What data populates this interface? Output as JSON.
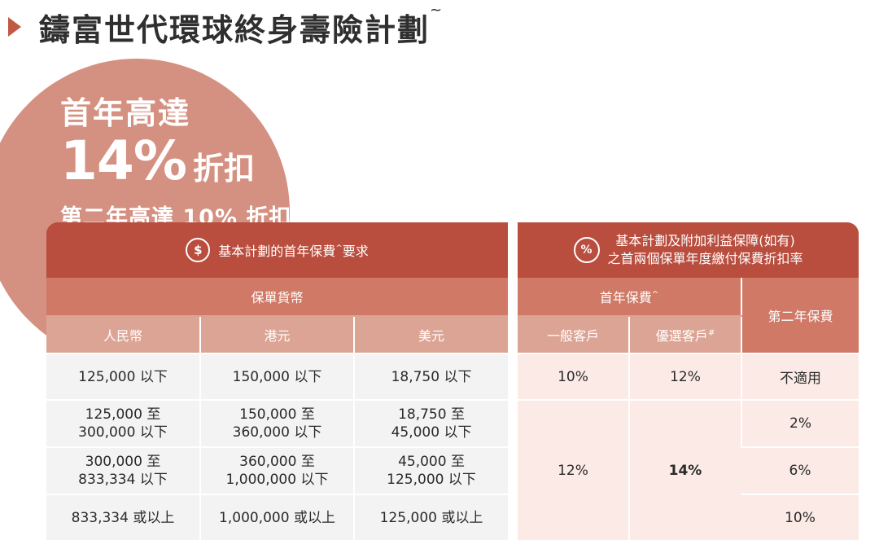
{
  "title": {
    "text": "鑄富世代環球終身壽險計劃",
    "mark": "~"
  },
  "promo": {
    "line1": "首年高達",
    "line2_big": "14%",
    "line2_small": "折扣",
    "line3": "第二年高達 10% 折扣"
  },
  "table1": {
    "icon": "$",
    "header": "基本計劃的首年保費",
    "header_mark": "^",
    "header_suffix": "要求",
    "sub_header": "保單貨幣",
    "columns": [
      "人民幣",
      "港元",
      "美元"
    ],
    "rows": [
      [
        [
          "125,000 以下"
        ],
        [
          "150,000 以下"
        ],
        [
          "18,750 以下"
        ]
      ],
      [
        [
          "125,000 至",
          "300,000 以下"
        ],
        [
          "150,000 至",
          "360,000 以下"
        ],
        [
          "18,750 至",
          "45,000 以下"
        ]
      ],
      [
        [
          "300,000 至",
          "833,334 以下"
        ],
        [
          "360,000 至",
          "1,000,000 以下"
        ],
        [
          "45,000 至",
          "125,000 以下"
        ]
      ],
      [
        [
          "833,334 或以上"
        ],
        [
          "1,000,000 或以上"
        ],
        [
          "125,000 或以上"
        ]
      ]
    ]
  },
  "table2": {
    "icon": "%",
    "header_line1": "基本計劃及附加利益保障(如有)",
    "header_line2": "之首兩個保單年度繳付保費折扣率",
    "first_year": "首年保費",
    "first_year_mark": "^",
    "second_year": "第二年保費",
    "general": "一般客戶",
    "preferred": "優選客戶",
    "preferred_mark": "#",
    "row1": {
      "general": "10%",
      "preferred": "12%",
      "second": "不適用"
    },
    "merged_general": "12%",
    "merged_preferred": "14%",
    "second_rates": [
      "2%",
      "6%",
      "10%"
    ]
  },
  "colors": {
    "title_arrow": "#c05a45",
    "circle": "#d49080",
    "header_dark": "#b94d3e",
    "header_mid": "#cf7966",
    "header_light": "#dca494",
    "cell_grey": "#f3f3f3",
    "cell_pink": "#fbeae6",
    "highlight": "#c94a3a"
  }
}
